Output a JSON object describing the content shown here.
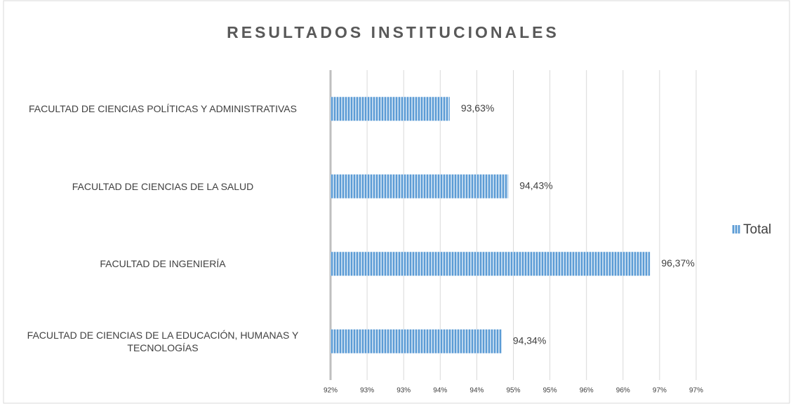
{
  "chart_data": {
    "type": "bar",
    "orientation": "horizontal",
    "title": "RESULTADOS INSTITUCIONALES",
    "categories": [
      "FACULTAD DE CIENCIAS POLÍTICAS Y ADMINISTRATIVAS",
      "FACULTAD DE CIENCIAS DE LA SALUD",
      "FACULTAD DE INGENIERÍA",
      "FACULTAD DE CIENCIAS DE LA EDUCACIÓN, HUMANAS Y TECNOLOGÍAS"
    ],
    "series": [
      {
        "name": "Total",
        "color": "#5b9bd5",
        "values": [
          93.63,
          94.43,
          96.37,
          94.34
        ],
        "value_labels": [
          "93,63%",
          "94,43%",
          "96,37%",
          "94,34%"
        ]
      }
    ],
    "xlim": [
      92,
      97
    ],
    "xticks": [
      {
        "value": 92,
        "label": "92%"
      },
      {
        "value": 92.5,
        "label": "93%"
      },
      {
        "value": 93,
        "label": "93%"
      },
      {
        "value": 93.5,
        "label": "94%"
      },
      {
        "value": 94,
        "label": "94%"
      },
      {
        "value": 94.5,
        "label": "95%"
      },
      {
        "value": 95,
        "label": "95%"
      },
      {
        "value": 95.5,
        "label": "96%"
      },
      {
        "value": 96,
        "label": "96%"
      },
      {
        "value": 96.5,
        "label": "97%"
      },
      {
        "value": 97,
        "label": "97%"
      }
    ],
    "grid": true,
    "legend": "right"
  }
}
